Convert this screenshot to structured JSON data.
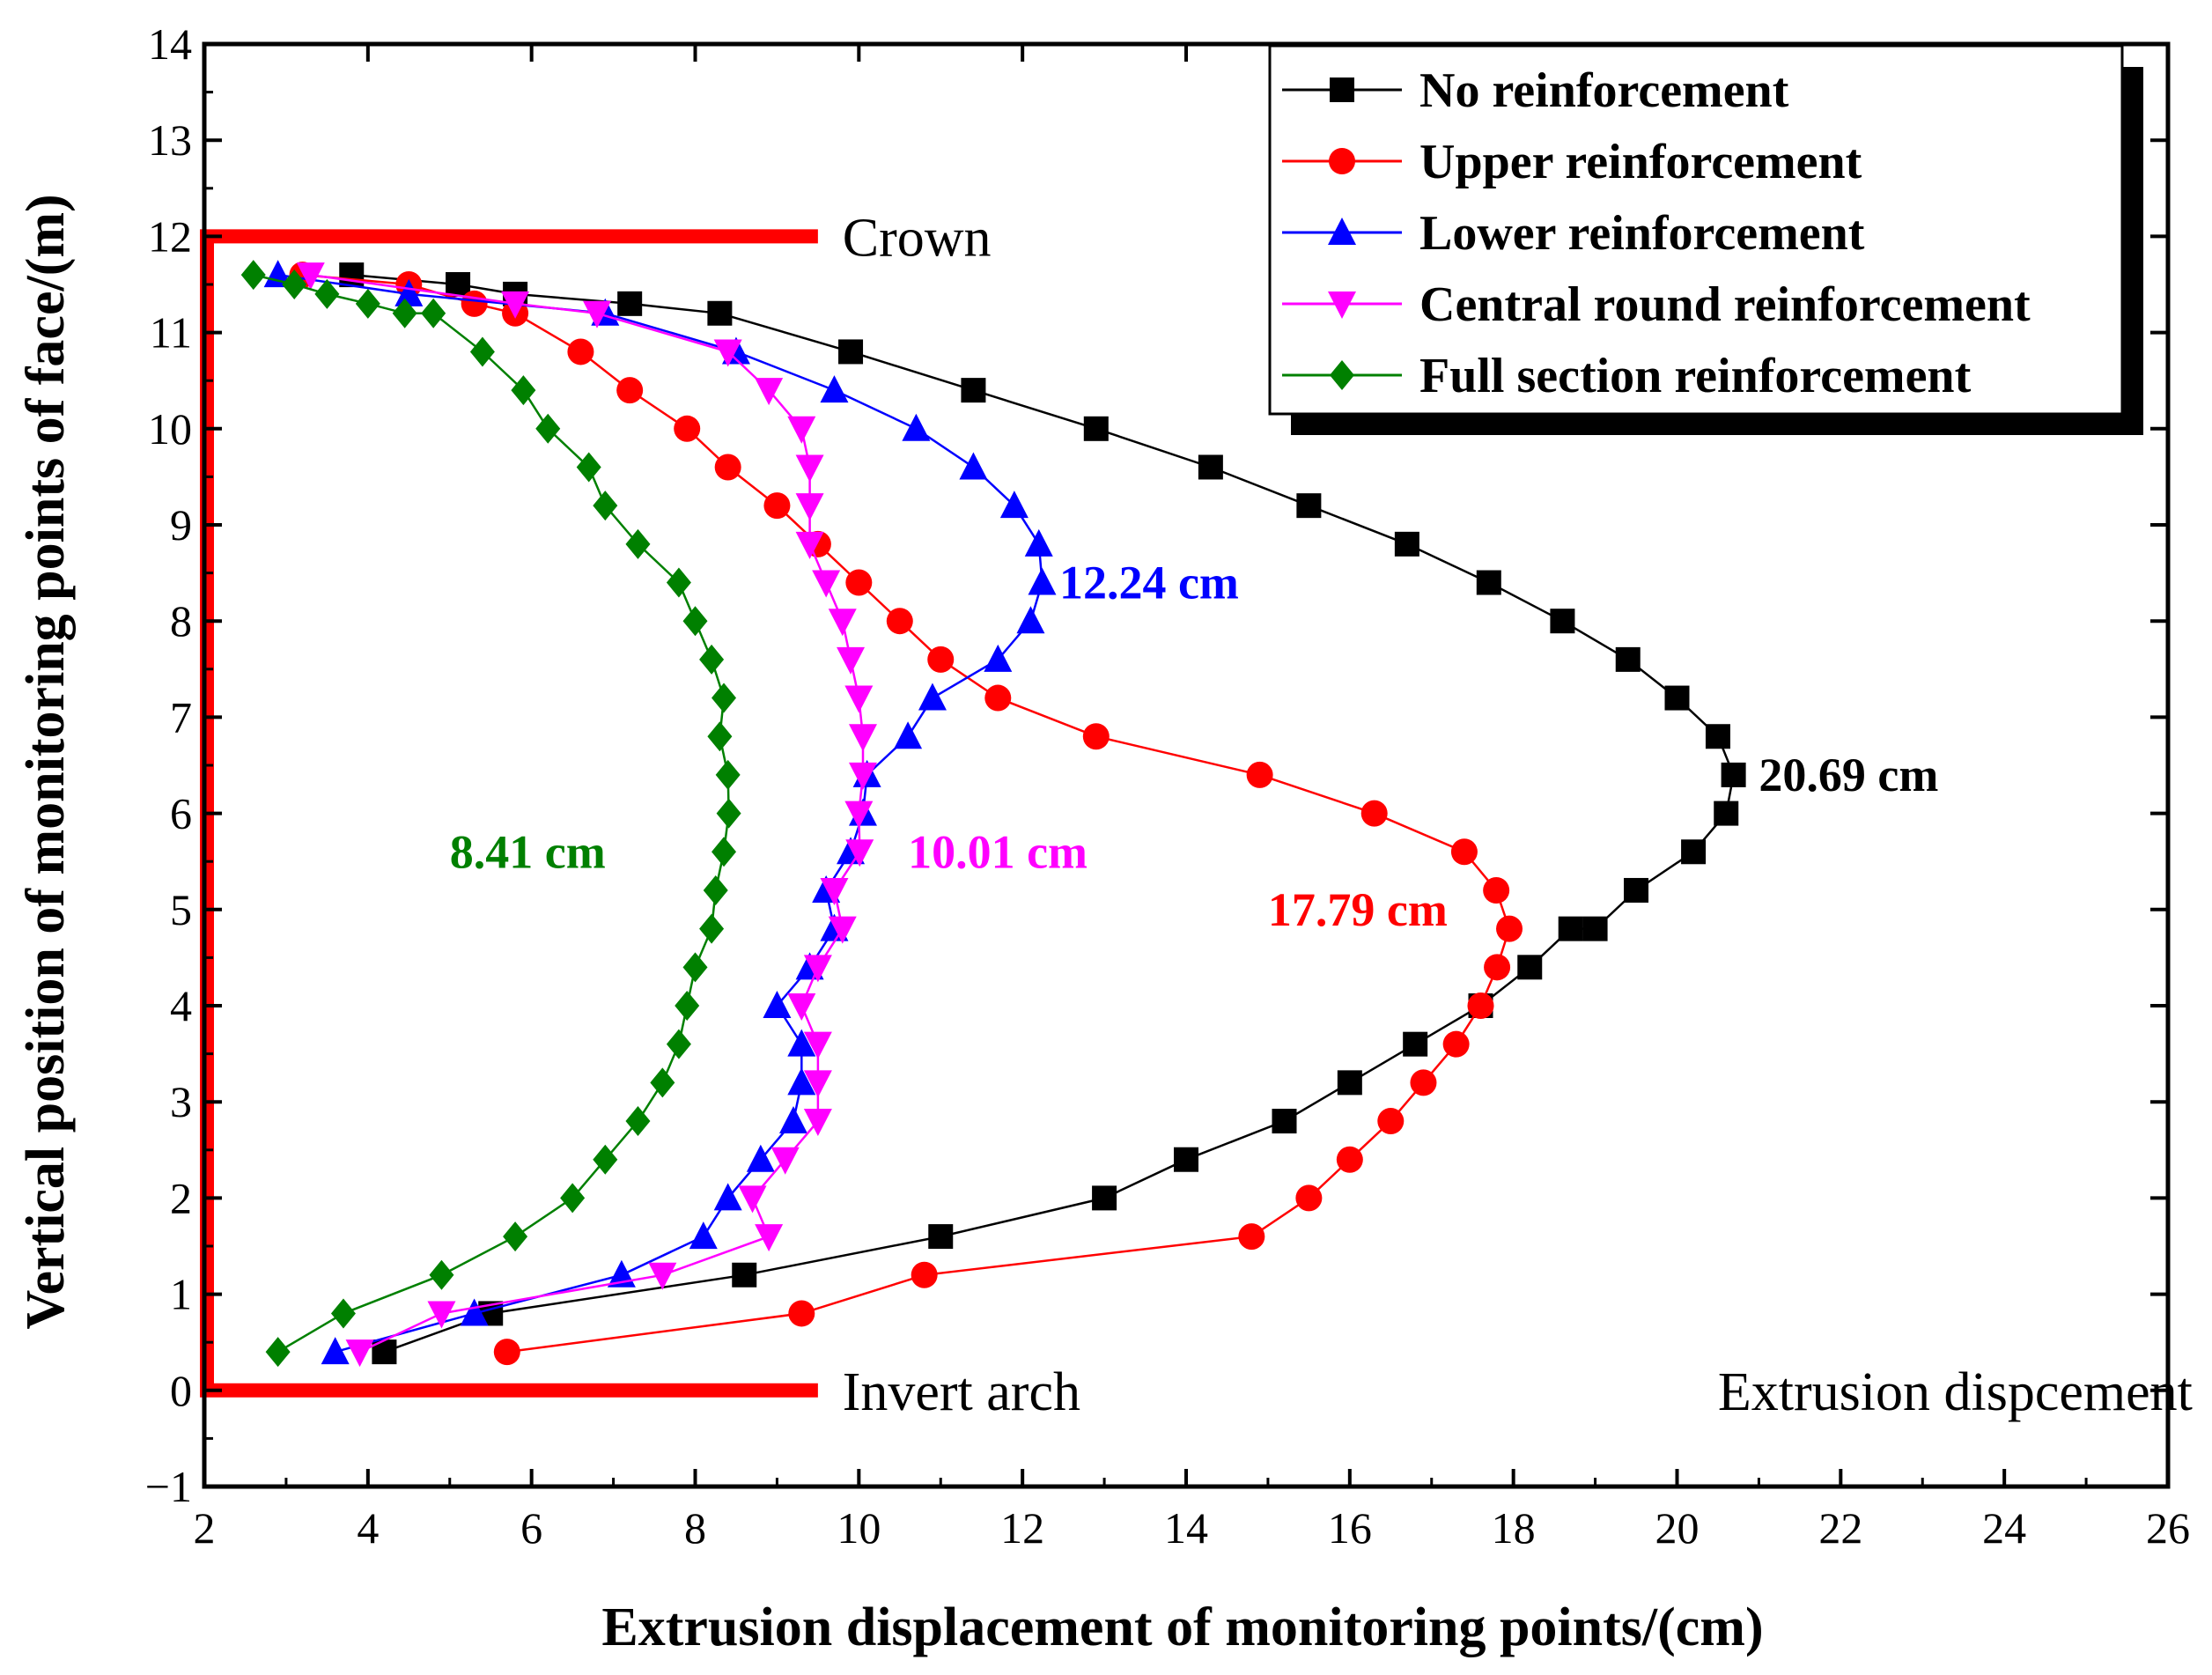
{
  "chart_data": {
    "type": "line",
    "xlabel": "Extrusion displacement of monitoring points/(cm)",
    "ylabel": "Vertical position of monitoring points of face/(m)",
    "xlim": [
      2,
      26
    ],
    "ylim": [
      -1,
      14
    ],
    "xticks": [
      2,
      4,
      6,
      8,
      10,
      12,
      14,
      16,
      18,
      20,
      22,
      24,
      26
    ],
    "xtick_labels": [
      "2",
      "4",
      "6",
      "8",
      "10",
      "12",
      "14",
      "16",
      "18",
      "20",
      "22",
      "24",
      "26"
    ],
    "yticks": [
      -1,
      0,
      1,
      2,
      3,
      4,
      5,
      6,
      7,
      8,
      9,
      10,
      11,
      12,
      13,
      14
    ],
    "ytick_labels": [
      "−1",
      "0",
      "1",
      "2",
      "3",
      "4",
      "5",
      "6",
      "7",
      "8",
      "9",
      "10",
      "11",
      "12",
      "13",
      "14"
    ],
    "legend_position": "top-right",
    "series": [
      {
        "name": "No reinforcement",
        "color": "#000000",
        "marker": "square",
        "x": [
          4.2,
          5.5,
          8.6,
          11.0,
          13.0,
          14.0,
          15.2,
          16.0,
          16.8,
          17.6,
          18.2,
          18.7,
          19.0,
          19.5,
          20.2,
          20.6,
          20.69,
          20.5,
          20.0,
          19.4,
          18.6,
          17.7,
          16.7,
          15.5,
          14.3,
          12.9,
          11.4,
          9.9,
          8.3,
          7.2,
          5.8,
          5.1,
          3.8
        ],
        "y": [
          0.4,
          0.8,
          1.2,
          1.6,
          2.0,
          2.4,
          2.8,
          3.2,
          3.6,
          4.0,
          4.4,
          4.8,
          4.8,
          5.2,
          5.6,
          6.0,
          6.4,
          6.8,
          7.2,
          7.6,
          8.0,
          8.4,
          8.8,
          9.2,
          9.6,
          10.0,
          10.4,
          10.8,
          11.2,
          11.3,
          11.4,
          11.5,
          11.6
        ]
      },
      {
        "name": "Upper reinforcement",
        "color": "#ff0000",
        "marker": "circle",
        "x": [
          5.7,
          9.3,
          10.8,
          14.8,
          15.5,
          16.0,
          16.5,
          16.9,
          17.3,
          17.6,
          17.8,
          17.95,
          17.79,
          17.4,
          16.3,
          14.9,
          12.9,
          11.7,
          11.0,
          10.5,
          10.0,
          9.5,
          9.0,
          8.4,
          7.9,
          7.2,
          6.6,
          5.8,
          5.3,
          4.5,
          3.2
        ],
        "y": [
          0.4,
          0.8,
          1.2,
          1.6,
          2.0,
          2.4,
          2.8,
          3.2,
          3.6,
          4.0,
          4.4,
          4.8,
          5.2,
          5.6,
          6.0,
          6.4,
          6.8,
          7.2,
          7.6,
          8.0,
          8.4,
          8.8,
          9.2,
          9.6,
          10.0,
          10.4,
          10.8,
          11.2,
          11.3,
          11.5,
          11.6
        ]
      },
      {
        "name": "Lower reinforcement",
        "color": "#0000ff",
        "marker": "triangle-up",
        "x": [
          3.6,
          5.3,
          7.1,
          8.1,
          8.4,
          8.8,
          9.2,
          9.3,
          9.3,
          9.0,
          9.4,
          9.7,
          9.6,
          9.9,
          10.05,
          10.1,
          10.6,
          10.9,
          11.7,
          12.1,
          12.24,
          12.2,
          11.9,
          11.4,
          10.7,
          9.7,
          8.5,
          6.9,
          4.5,
          2.9
        ],
        "y": [
          0.4,
          0.8,
          1.2,
          1.6,
          2.0,
          2.4,
          2.8,
          3.2,
          3.6,
          4.0,
          4.4,
          4.8,
          5.2,
          5.6,
          6.0,
          6.4,
          6.8,
          7.2,
          7.6,
          8.0,
          8.4,
          8.8,
          9.2,
          9.6,
          10.0,
          10.4,
          10.8,
          11.2,
          11.4,
          11.6
        ]
      },
      {
        "name": "Central round reinforcement",
        "color": "#ff00ff",
        "marker": "triangle-down",
        "x": [
          3.9,
          4.9,
          7.6,
          8.9,
          8.7,
          9.1,
          9.5,
          9.5,
          9.5,
          9.3,
          9.5,
          9.8,
          9.7,
          10.01,
          10.0,
          10.05,
          10.05,
          10.0,
          9.9,
          9.8,
          9.6,
          9.4,
          9.4,
          9.4,
          9.3,
          8.9,
          8.4,
          6.8,
          5.8,
          3.3
        ],
        "y": [
          0.4,
          0.8,
          1.2,
          1.6,
          2.0,
          2.4,
          2.8,
          3.2,
          3.6,
          4.0,
          4.4,
          4.8,
          5.2,
          5.6,
          6.0,
          6.4,
          6.8,
          7.2,
          7.6,
          8.0,
          8.4,
          8.8,
          9.2,
          9.6,
          10.0,
          10.4,
          10.8,
          11.2,
          11.3,
          11.6
        ]
      },
      {
        "name": "Full section reinforcement",
        "color": "#008000",
        "marker": "diamond",
        "x": [
          2.9,
          3.7,
          4.9,
          5.8,
          6.5,
          6.9,
          7.3,
          7.6,
          7.8,
          7.9,
          8.0,
          8.2,
          8.25,
          8.35,
          8.41,
          8.4,
          8.3,
          8.35,
          8.2,
          8.0,
          7.8,
          7.3,
          6.9,
          6.7,
          6.2,
          5.9,
          5.4,
          4.8,
          4.45,
          4.0,
          3.5,
          3.1,
          2.6
        ],
        "y": [
          0.4,
          0.8,
          1.2,
          1.6,
          2.0,
          2.4,
          2.8,
          3.2,
          3.6,
          4.0,
          4.4,
          4.8,
          5.2,
          5.6,
          6.0,
          6.4,
          6.8,
          7.2,
          7.6,
          8.0,
          8.4,
          8.8,
          9.2,
          9.6,
          10.0,
          10.4,
          10.8,
          11.2,
          11.2,
          11.3,
          11.4,
          11.5,
          11.6
        ]
      }
    ],
    "annotations": [
      {
        "text": "12.24 cm",
        "x": 12.45,
        "y": 8.4,
        "color": "#0000ff"
      },
      {
        "text": "20.69 cm",
        "x": 21.0,
        "y": 6.4,
        "color": "#000000"
      },
      {
        "text": "10.01 cm",
        "x": 10.6,
        "y": 5.6,
        "color": "#ff00ff"
      },
      {
        "text": "17.79 cm",
        "x": 15.0,
        "y": 5.0,
        "color": "#ff0000"
      },
      {
        "text": "8.41 cm",
        "x": 5.0,
        "y": 5.6,
        "color": "#008000"
      }
    ],
    "region_labels": [
      {
        "text": "Crown",
        "x": 9.8,
        "y": 12.0
      },
      {
        "text": "Invert arch",
        "x": 9.8,
        "y": 0.0
      },
      {
        "text": "Extrusion dispcement",
        "x": 23.4,
        "y": 0.0
      }
    ],
    "tunnel_outline": {
      "color": "#ff0000",
      "x_left": 2.0,
      "x_right": 9.5,
      "y_top": 12.0,
      "y_bottom": 0.0
    }
  }
}
